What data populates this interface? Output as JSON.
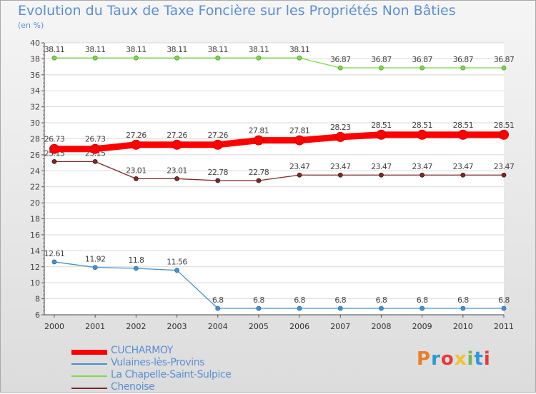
{
  "title": "Evolution du Taux de Taxe Foncière sur les Propriétés Non Bâties",
  "unit": "(en %)",
  "logo": "Proxiti",
  "logo_colors": [
    "#e87e2a",
    "#2a9ad6",
    "#e23b3b",
    "#f2c12e",
    "#7ab648",
    "#2a9ad6",
    "#e23b3b"
  ],
  "chart_data": {
    "type": "line",
    "title": "Evolution du Taux de Taxe Foncière sur les Propriétés Non Bâties",
    "ylabel": "(en %)",
    "xlabel": "",
    "ylim": [
      6,
      40
    ],
    "yticks": [
      6,
      8,
      10,
      12,
      14,
      16,
      18,
      20,
      22,
      24,
      26,
      28,
      30,
      32,
      34,
      36,
      38,
      40
    ],
    "categories": [
      "2000",
      "2001",
      "2002",
      "2003",
      "2004",
      "2005",
      "2006",
      "2007",
      "2008",
      "2009",
      "2010",
      "2011"
    ],
    "grid": true,
    "legend_position": "bottom-left",
    "series": [
      {
        "name": "CUCHARMOY",
        "color": "#ff0000",
        "values": [
          26.73,
          26.73,
          27.26,
          27.26,
          27.26,
          27.81,
          27.81,
          28.23,
          28.51,
          28.51,
          28.51,
          28.51
        ],
        "labels": [
          "26.73",
          "26.73",
          "27.26",
          "27.26",
          "27.26",
          "27.81",
          "27.81",
          "28.23",
          "28.51",
          "28.51",
          "28.51",
          "28.51"
        ]
      },
      {
        "name": "Vulaines-lès-Provins",
        "color": "#4a90c8",
        "values": [
          12.61,
          11.92,
          11.8,
          11.56,
          6.8,
          6.8,
          6.8,
          6.8,
          6.8,
          6.8,
          6.8,
          6.8
        ],
        "labels": [
          "12.61",
          "11.92",
          "11.8",
          "11.56",
          "6.8",
          "6.8",
          "6.8",
          "6.8",
          "6.8",
          "6.8",
          "6.8",
          "6.8"
        ]
      },
      {
        "name": "La Chapelle-Saint-Sulpice",
        "color": "#7fd850",
        "values": [
          38.11,
          38.11,
          38.11,
          38.11,
          38.11,
          38.11,
          38.11,
          36.87,
          36.87,
          36.87,
          36.87,
          36.87
        ],
        "labels": [
          "38.11",
          "38.11",
          "38.11",
          "38.11",
          "38.11",
          "38.11",
          "38.11",
          "36.87",
          "36.87",
          "36.87",
          "36.87",
          "36.87"
        ]
      },
      {
        "name": "Chenoise",
        "color": "#7a2a2a",
        "values": [
          25.15,
          25.15,
          23.01,
          23.01,
          22.78,
          22.78,
          23.47,
          23.47,
          23.47,
          23.47,
          23.47,
          23.47
        ],
        "labels": [
          "25.15",
          "25.15",
          "23.01",
          "23.01",
          "22.78",
          "22.78",
          "23.47",
          "23.47",
          "23.47",
          "23.47",
          "23.47",
          "23.47"
        ]
      }
    ]
  }
}
